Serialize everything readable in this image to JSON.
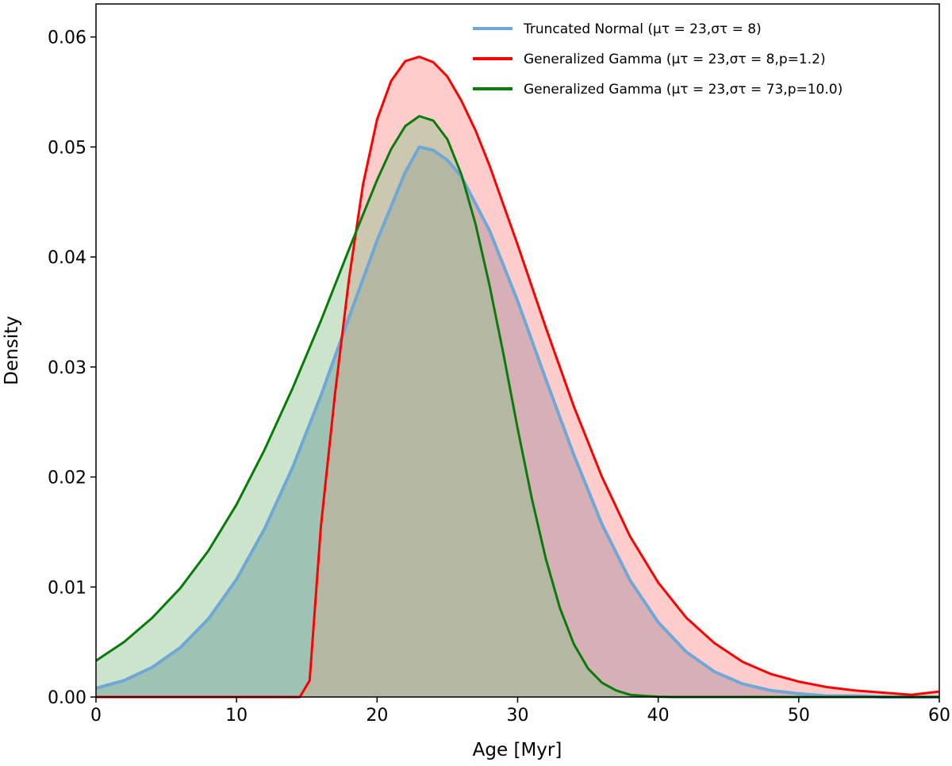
{
  "chart_data": {
    "type": "line",
    "xlabel": "Age [Myr]",
    "ylabel": "Density",
    "xlim": [
      0,
      60
    ],
    "ylim": [
      0,
      0.063
    ],
    "xticks": [
      0,
      10,
      20,
      30,
      40,
      50,
      60
    ],
    "xtick_labels": [
      "0",
      "10",
      "20",
      "30",
      "40",
      "50",
      "60"
    ],
    "yticks": [
      0,
      0.01,
      0.02,
      0.03,
      0.04,
      0.05,
      0.06
    ],
    "ytick_labels": [
      "0.00",
      "0.01",
      "0.02",
      "0.03",
      "0.04",
      "0.05",
      "0.06"
    ],
    "grid": false,
    "legend_position": "top-right",
    "series": [
      {
        "name": "Truncated Normal (μτ = 23,στ =  8)",
        "color": "#6fa8d6",
        "fill": "#6a93b3",
        "fill_opacity": 0.55,
        "linewidth": 4,
        "x": [
          0,
          2,
          4,
          6,
          8,
          10,
          12,
          14,
          16,
          18,
          20,
          21,
          22,
          23,
          24,
          25,
          26,
          28,
          30,
          32,
          34,
          36,
          38,
          40,
          42,
          44,
          46,
          48,
          50,
          52,
          54,
          56,
          58,
          60
        ],
        "y": [
          0.0008,
          0.0015,
          0.0027,
          0.0045,
          0.0071,
          0.0107,
          0.0153,
          0.0209,
          0.0274,
          0.0345,
          0.0415,
          0.0446,
          0.0477,
          0.05,
          0.0497,
          0.0488,
          0.0473,
          0.0424,
          0.036,
          0.0289,
          0.022,
          0.0157,
          0.0106,
          0.0068,
          0.0041,
          0.0023,
          0.0012,
          0.0006,
          0.0003,
          0.0001,
          0.0001,
          0.0,
          0.0,
          0.0
        ]
      },
      {
        "name": "Generalized Gamma (μτ = 23,στ =  8,p=1.2)",
        "color": "#ff0000",
        "fill": "#ff9a9a",
        "fill_opacity": 0.5,
        "linewidth": 3,
        "x": [
          0,
          14.5,
          15.2,
          16,
          17,
          18,
          19,
          20,
          21,
          22,
          23,
          24,
          25,
          26,
          27,
          28,
          30,
          32,
          34,
          36,
          38,
          40,
          42,
          44,
          46,
          48,
          50,
          52,
          54,
          56,
          58,
          60
        ],
        "y": [
          0.0,
          0.0,
          0.0015,
          0.0155,
          0.0275,
          0.038,
          0.0466,
          0.0525,
          0.056,
          0.0578,
          0.0582,
          0.0577,
          0.0564,
          0.0542,
          0.0515,
          0.0483,
          0.0411,
          0.0336,
          0.0264,
          0.02,
          0.0146,
          0.0104,
          0.0072,
          0.0049,
          0.0032,
          0.0021,
          0.0014,
          0.0009,
          0.0006,
          0.0004,
          0.0002,
          0.0005
        ]
      },
      {
        "name": "Generalized Gamma (μτ = 23,στ = 73,p=10.0)",
        "color": "#0a7a0a",
        "fill": "#8cc48c",
        "fill_opacity": 0.45,
        "linewidth": 3,
        "x": [
          0,
          2,
          4,
          6,
          8,
          10,
          12,
          14,
          16,
          18,
          20,
          21,
          22,
          23,
          24,
          25,
          26,
          27,
          28,
          29,
          30,
          31,
          32,
          33,
          34,
          35,
          36,
          37,
          38,
          39,
          40,
          41,
          42,
          44,
          46,
          48,
          50,
          55,
          60
        ],
        "y": [
          0.0033,
          0.005,
          0.0072,
          0.0099,
          0.0133,
          0.0175,
          0.0225,
          0.0281,
          0.0342,
          0.0407,
          0.047,
          0.0498,
          0.0519,
          0.0528,
          0.0524,
          0.0507,
          0.0475,
          0.043,
          0.0374,
          0.0311,
          0.0244,
          0.0181,
          0.0126,
          0.0081,
          0.0048,
          0.0026,
          0.0013,
          0.0006,
          0.0002,
          0.0001,
          3e-05,
          0.0,
          0.0,
          0.0,
          0.0,
          0.0,
          0.0,
          0.0,
          0.0
        ]
      }
    ]
  }
}
